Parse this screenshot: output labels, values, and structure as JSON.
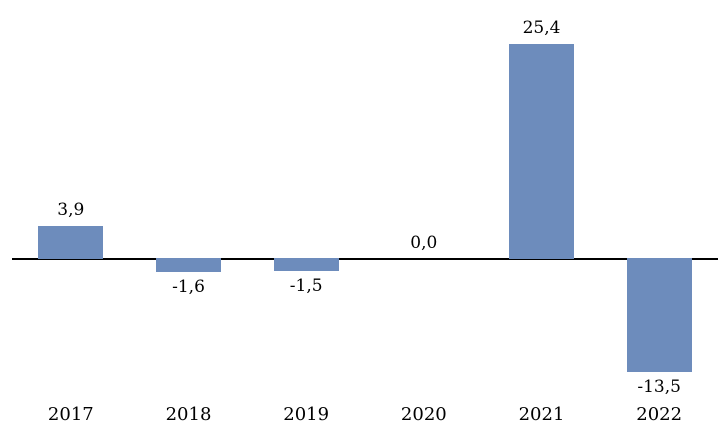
{
  "chart_data": {
    "type": "bar",
    "title": "",
    "xlabel": "",
    "ylabel": "",
    "categories": [
      "2017",
      "2018",
      "2019",
      "2020",
      "2021",
      "2022"
    ],
    "values": [
      3.9,
      -1.6,
      -1.5,
      0.0,
      25.4,
      -13.5
    ],
    "value_labels": [
      "3,9",
      "-1,6",
      "-1,5",
      "0,0",
      "25,4",
      "-13,5"
    ],
    "decimal_separator": ",",
    "ylim": [
      -15,
      27
    ],
    "grid": false,
    "legend": "none",
    "bar_color": "#6D8CBC",
    "axis_color": "#000000",
    "background_color": "#FFFFFF",
    "label_color": "#000000"
  }
}
